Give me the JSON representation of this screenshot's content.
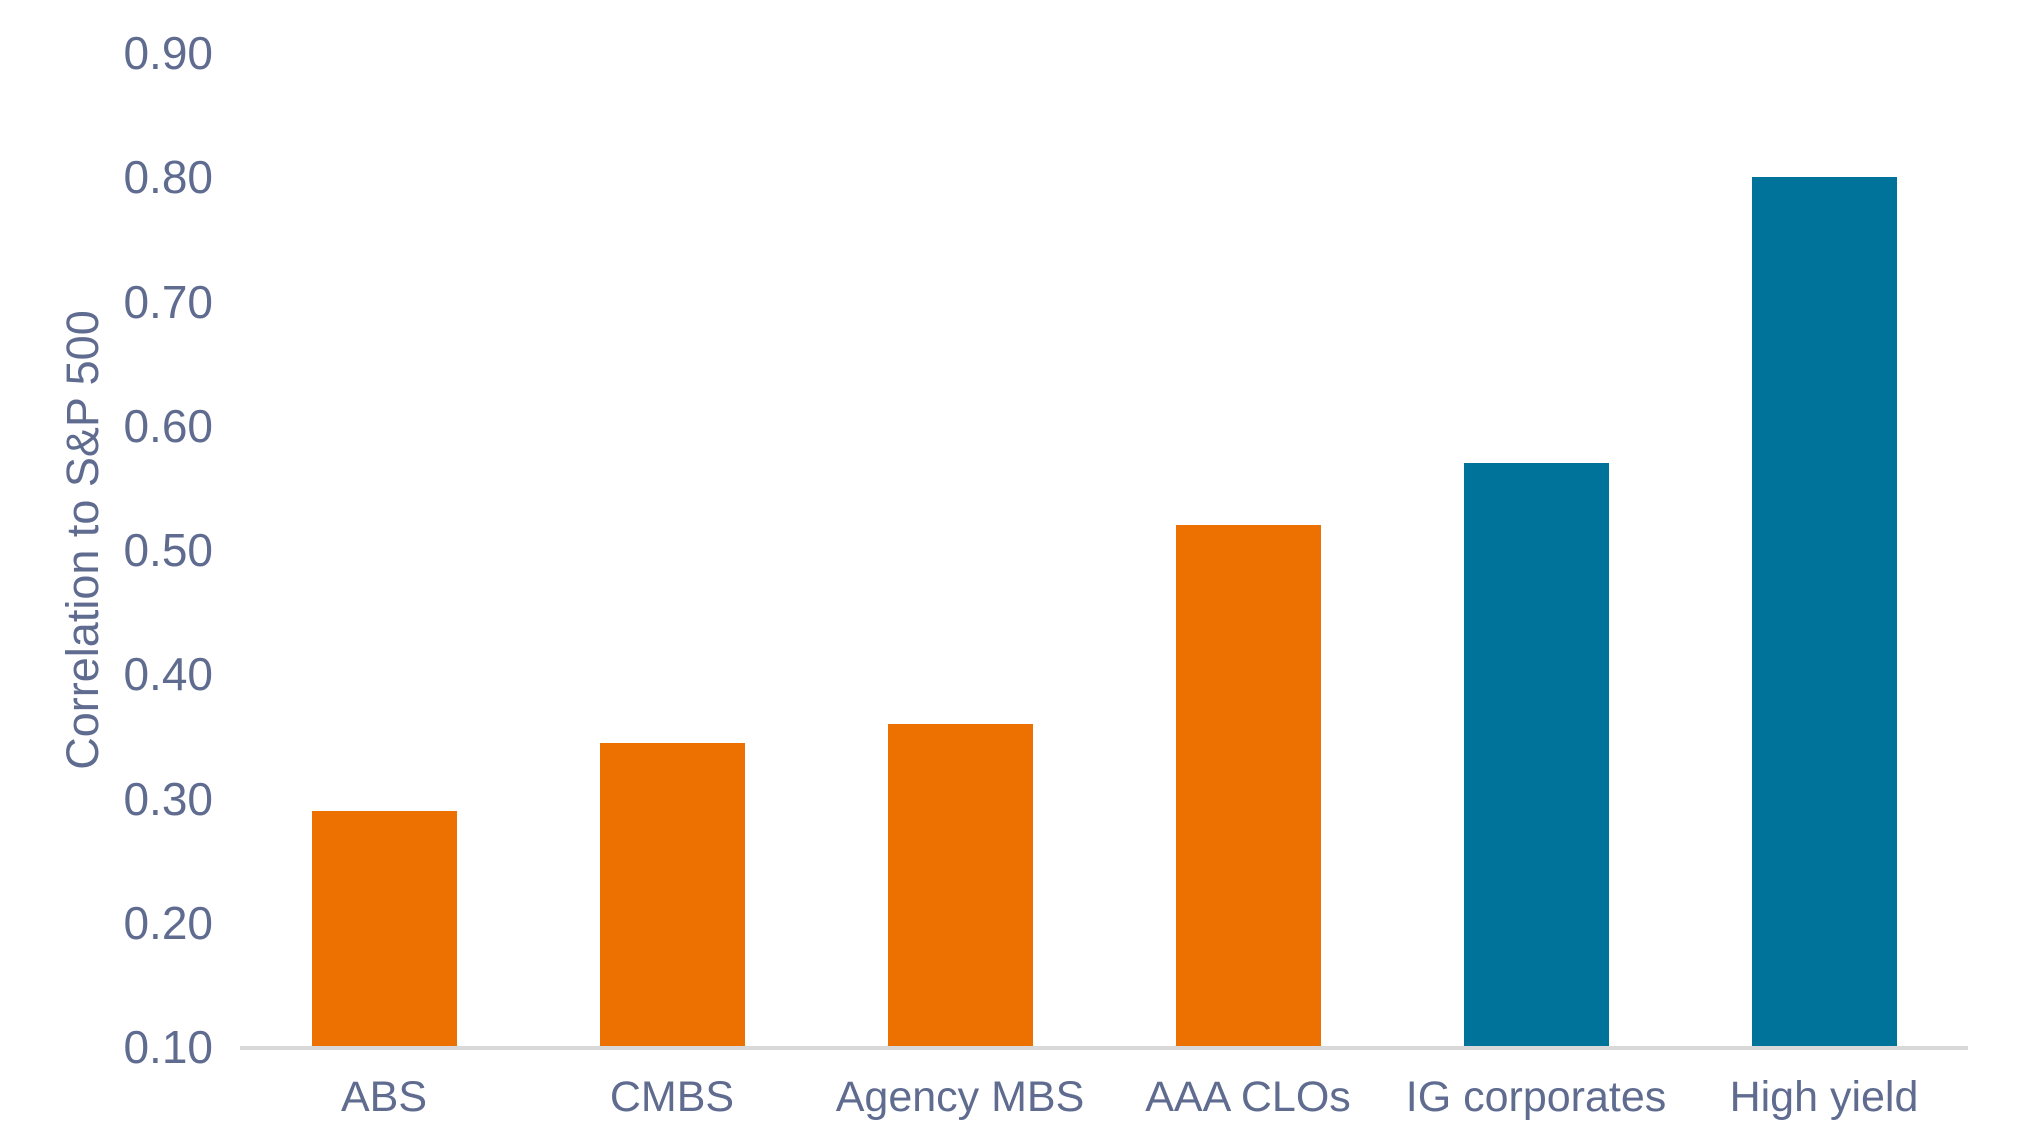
{
  "colors": {
    "bar_orange": "#ED7100",
    "bar_teal": "#00739B",
    "label_text": "#5F6C90",
    "axis_line": "#D9D9D9",
    "background": "#FFFFFF"
  },
  "chart_data": {
    "type": "bar",
    "title": "",
    "xlabel": "",
    "ylabel": "Correlation to S&P 500",
    "categories": [
      "ABS",
      "CMBS",
      "Agency MBS",
      "AAA CLOs",
      "IG corporates",
      "High yield"
    ],
    "values": [
      0.29,
      0.345,
      0.36,
      0.52,
      0.57,
      0.8
    ],
    "bar_colors": [
      "#ED7100",
      "#ED7100",
      "#ED7100",
      "#ED7100",
      "#00739B",
      "#00739B"
    ],
    "ylim": [
      0.1,
      0.9
    ],
    "ytick_step": 0.1,
    "ytick_labels": [
      "0.10",
      "0.20",
      "0.30",
      "0.40",
      "0.50",
      "0.60",
      "0.70",
      "0.80",
      "0.90"
    ],
    "grid": false,
    "legend": "none"
  }
}
